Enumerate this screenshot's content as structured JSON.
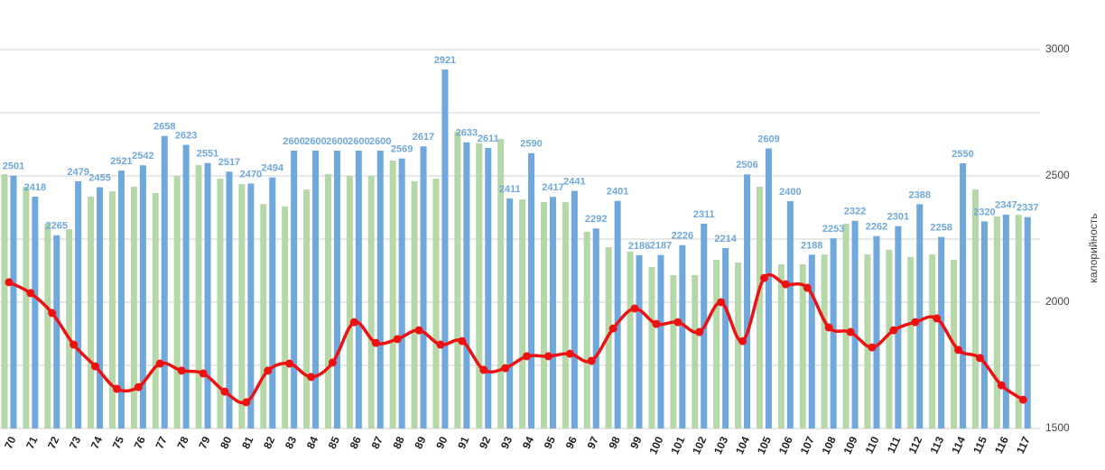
{
  "chart_data": {
    "type": "bar_line",
    "y_axis_label": "калорийность",
    "categories": [
      "70",
      "71",
      "72",
      "73",
      "74",
      "75",
      "76",
      "77",
      "78",
      "79",
      "80",
      "81",
      "82",
      "83",
      "84",
      "85",
      "86",
      "87",
      "88",
      "89",
      "90",
      "91",
      "92",
      "93",
      "94",
      "95",
      "96",
      "97",
      "98",
      "99",
      "100",
      "101",
      "102",
      "103",
      "104",
      "105",
      "106",
      "107",
      "108",
      "109",
      "110",
      "111",
      "112",
      "113",
      "114",
      "115",
      "116",
      "117"
    ],
    "series": [
      {
        "type": "bar",
        "color": "#b6d7a8",
        "values": [
          2507,
          2457,
          2311,
          2289,
          2418,
          2439,
          2457,
          2432,
          2500,
          2543,
          2489,
          2468,
          2389,
          2379,
          2446,
          2507,
          2500,
          2500,
          2561,
          2479,
          2489,
          2675,
          2629,
          2646,
          2407,
          2396,
          2396,
          2279,
          2218,
          2200,
          2139,
          2107,
          2107,
          2168,
          2157,
          2457,
          2150,
          2150,
          2189,
          2311,
          2189,
          2207,
          2179,
          2189,
          2168,
          2446,
          2339,
          2346
        ]
      },
      {
        "type": "bar",
        "color": "#6fa8dc",
        "show_value_labels": true,
        "values": [
          2501,
          2418,
          2265,
          2479,
          2455,
          2521,
          2542,
          2658,
          2623,
          2551,
          2517,
          2470,
          2494,
          2600,
          2600,
          2600,
          2600,
          2600,
          2569,
          2617,
          2921,
          2633,
          2611,
          2411,
          2590,
          2417,
          2441,
          2292,
          2401,
          2186,
          2187,
          2226,
          2311,
          2214,
          2506,
          2609,
          2400,
          2188,
          2253,
          2322,
          2262,
          2301,
          2388,
          2258,
          2550,
          2320,
          2347,
          2337
        ]
      },
      {
        "type": "line",
        "color": "#ee1111",
        "smooth": true,
        "values": [
          2079,
          2036,
          1957,
          1832,
          1746,
          1657,
          1664,
          1757,
          1729,
          1718,
          1646,
          1604,
          1729,
          1757,
          1704,
          1761,
          1921,
          1839,
          1854,
          1889,
          1832,
          1846,
          1732,
          1739,
          1786,
          1786,
          1796,
          1768,
          1896,
          1975,
          1914,
          1921,
          1882,
          2000,
          1846,
          2096,
          2071,
          2057,
          1900,
          1882,
          1821,
          1889,
          1921,
          1936,
          1811,
          1779,
          1671,
          1614
        ]
      }
    ],
    "ylim": [
      1500,
      3000
    ],
    "yticks": [
      1500,
      2000,
      2500,
      3000
    ],
    "minor_grid": [
      1750,
      2250,
      2750
    ],
    "grid": true,
    "y_axis_side": "right"
  }
}
